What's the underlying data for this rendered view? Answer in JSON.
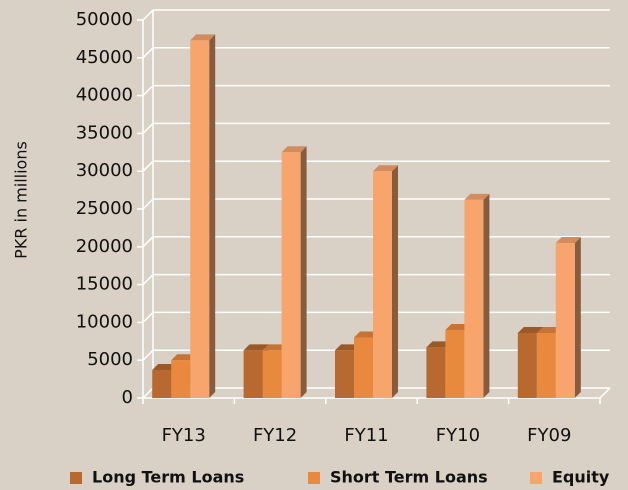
{
  "chart_data": {
    "type": "bar3d",
    "y_label": "PKR in millions",
    "categories": [
      "FY13",
      "FY12",
      "FY11",
      "FY10",
      "FY09"
    ],
    "series": [
      {
        "name": "Long Term Loans",
        "color": "#b8692f",
        "values": [
          3700,
          6300,
          6300,
          6700,
          8600
        ]
      },
      {
        "name": "Short Term Loans",
        "color": "#e8893e",
        "values": [
          5000,
          6300,
          8000,
          9000,
          8600
        ]
      },
      {
        "name": "Equity",
        "color": "#f8a56d",
        "values": [
          47300,
          32500,
          30000,
          26200,
          20500
        ]
      }
    ],
    "ylim": [
      0,
      50000
    ],
    "yticks": [
      0,
      5000,
      10000,
      15000,
      20000,
      25000,
      30000,
      35000,
      40000,
      45000,
      50000
    ],
    "grid": true,
    "legend": "bottom"
  }
}
